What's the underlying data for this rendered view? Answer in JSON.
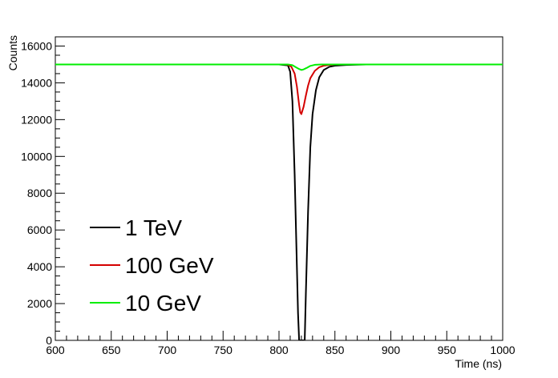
{
  "chart_data": {
    "type": "line",
    "title": "",
    "xlabel": "Time (ns)",
    "ylabel": "Counts",
    "xlim": [
      600,
      1000
    ],
    "ylim": [
      0,
      16500
    ],
    "x_ticks": [
      600,
      650,
      700,
      750,
      800,
      850,
      900,
      950,
      1000
    ],
    "x_tick_labels": [
      "600",
      "650",
      "700",
      "750",
      "800",
      "850",
      "900",
      "950",
      "1000"
    ],
    "y_ticks": [
      0,
      2000,
      4000,
      6000,
      8000,
      10000,
      12000,
      14000,
      16000
    ],
    "y_tick_labels": [
      "0",
      "2000",
      "4000",
      "6000",
      "8000",
      "10000",
      "12000",
      "14000",
      "16000"
    ],
    "grid": false,
    "legend": {
      "placement": "bottom-left"
    },
    "series": [
      {
        "name": "1 TeV",
        "color": "#000000",
        "x": [
          600,
          800,
          808,
          810,
          812,
          814,
          816,
          817,
          818,
          820,
          822,
          823,
          824,
          826,
          828,
          830,
          833,
          836,
          840,
          845,
          850,
          860,
          870,
          878
        ],
        "y": [
          15000,
          15000,
          14950,
          14600,
          13000,
          9000,
          4000,
          1500,
          0,
          0,
          0,
          0,
          2500,
          7000,
          10500,
          12300,
          13600,
          14300,
          14700,
          14870,
          14930,
          14970,
          14985,
          15000
        ]
      },
      {
        "name": "100 GeV",
        "color": "#d40000",
        "x": [
          600,
          805,
          808,
          811,
          814,
          816,
          818,
          819,
          820,
          822,
          824,
          826,
          828,
          832,
          836,
          840,
          845,
          850,
          860,
          1000
        ],
        "y": [
          15000,
          15000,
          14980,
          14880,
          14500,
          13800,
          12800,
          12400,
          12300,
          12700,
          13300,
          13850,
          14250,
          14650,
          14850,
          14930,
          14970,
          14990,
          15000,
          15000
        ]
      },
      {
        "name": "10 GeV",
        "color": "#00ee00",
        "x": [
          600,
          808,
          812,
          815,
          818,
          820,
          822,
          825,
          828,
          832,
          838,
          1000
        ],
        "y": [
          15000,
          15000,
          14960,
          14850,
          14750,
          14700,
          14730,
          14820,
          14920,
          14980,
          15000,
          15000
        ]
      }
    ]
  }
}
